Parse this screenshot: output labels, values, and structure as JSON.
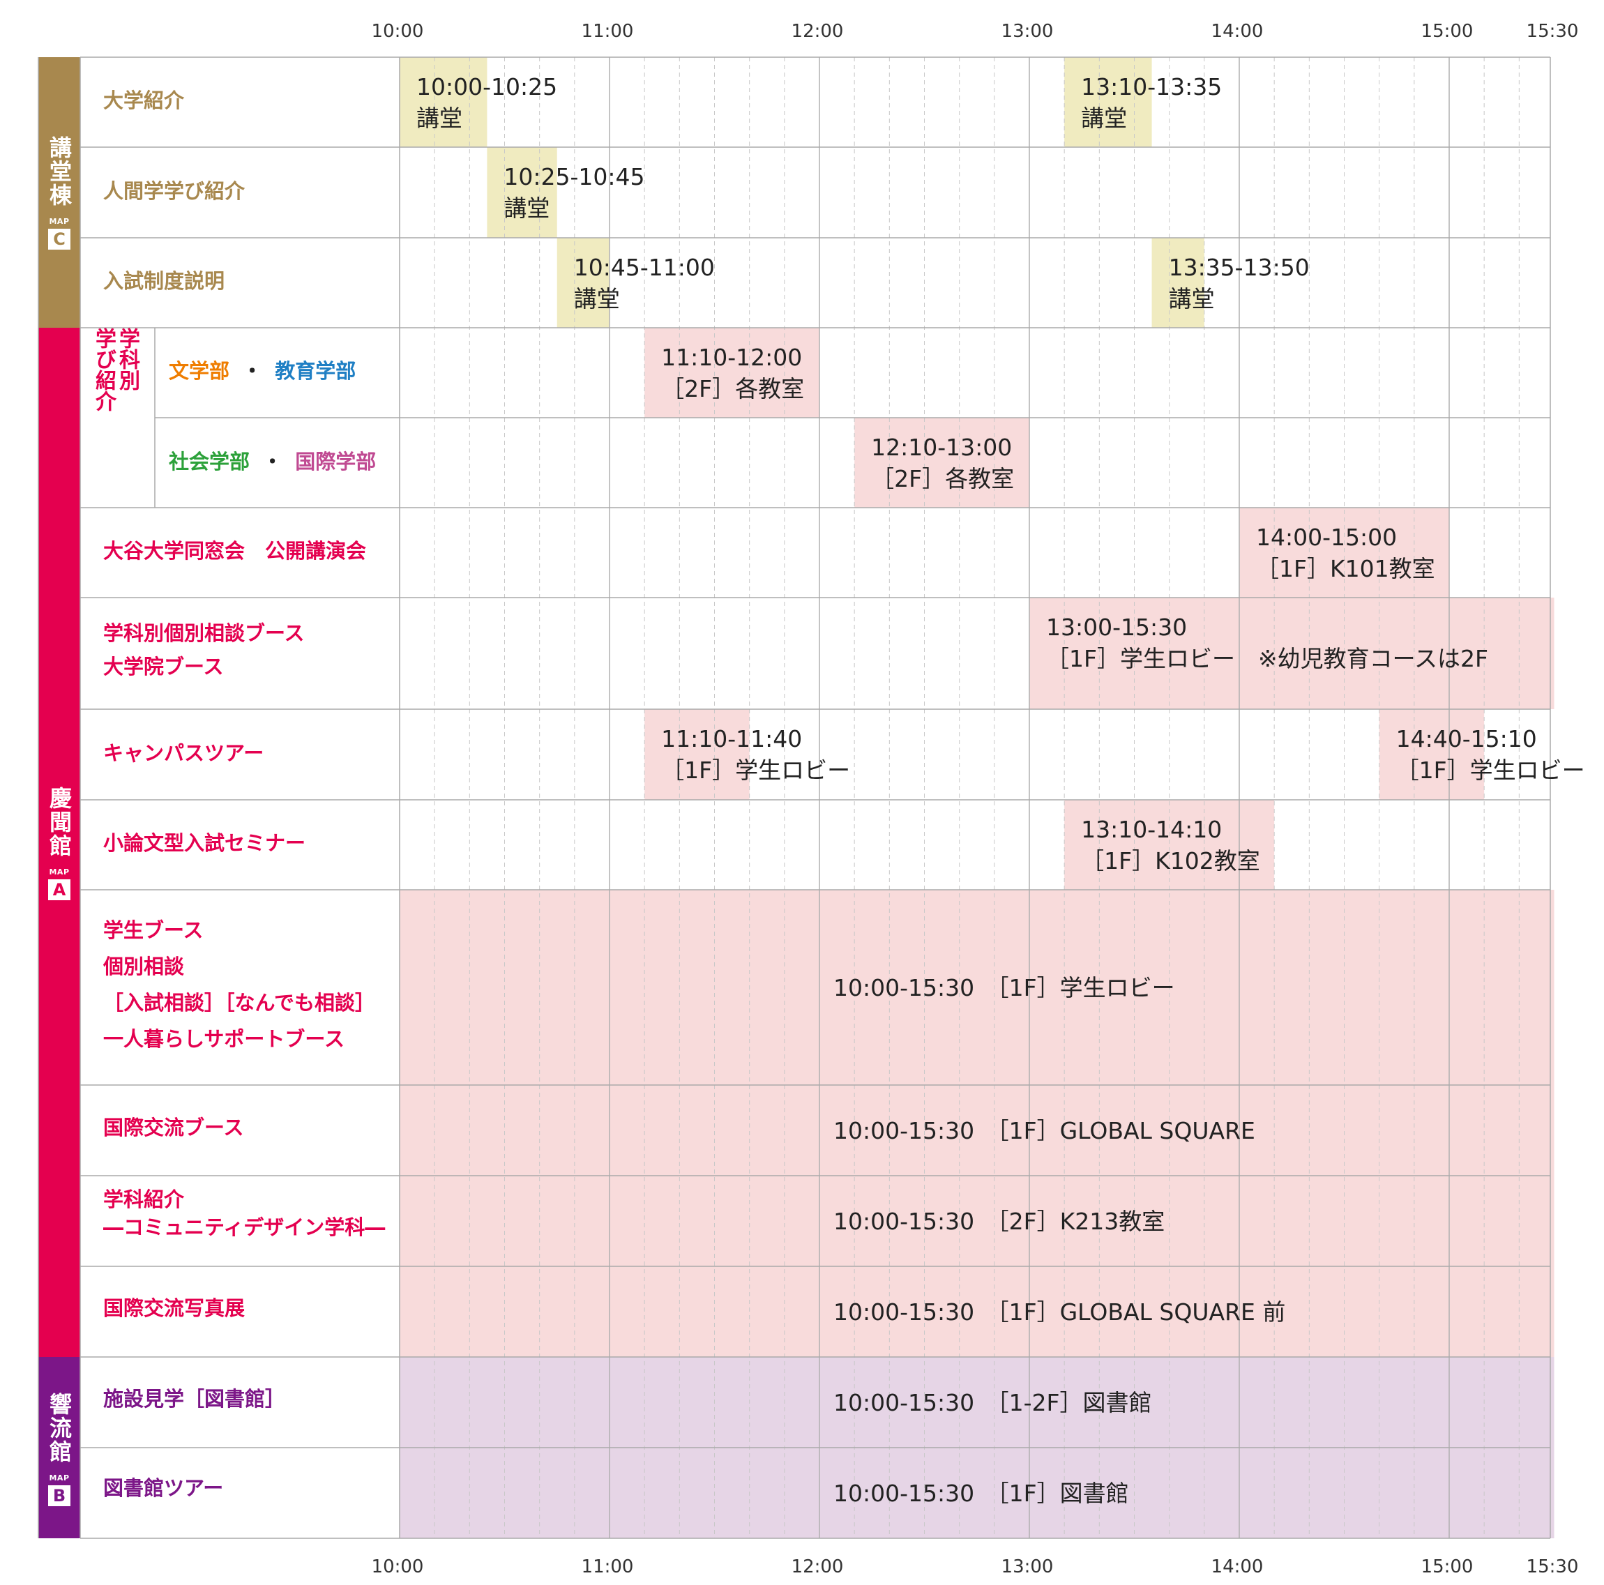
{
  "time_axis": {
    "ticks": [
      "10:00",
      "11:00",
      "12:00",
      "13:00",
      "14:00",
      "15:00",
      "15:30"
    ]
  },
  "colors": {
    "kodo": "#a8884e",
    "keimon": "#e4004f",
    "kyoryu": "#7c1688",
    "block_yellow": "#f0ebc0",
    "block_pink": "#f8dbdb",
    "block_purple": "#e6d5e6",
    "bungakubu": "#ef7d00",
    "kyoikugakubu": "#1f7fc4",
    "shakaigakubu": "#2ca13a",
    "kokusaigakubu": "#c04a92"
  },
  "buildings": [
    {
      "name": "講堂棟",
      "map_label": "MAP",
      "map_letter": "C"
    },
    {
      "name": "慶聞館",
      "map_label": "MAP",
      "map_letter": "A"
    },
    {
      "name": "響流館",
      "map_label": "MAP",
      "map_letter": "B"
    }
  ],
  "rows": [
    {
      "label": [
        "大学紹介"
      ]
    },
    {
      "label": [
        "人間学学び紹介"
      ]
    },
    {
      "label": [
        "入試制度説明"
      ]
    },
    {
      "label": [
        "・"
      ],
      "parts": [
        "文学部",
        "教育学部"
      ]
    },
    {
      "label": [
        "・"
      ],
      "parts": [
        "社会学部",
        "国際学部"
      ]
    },
    {
      "label": [
        "大谷大学同窓会　公開講演会"
      ]
    },
    {
      "label": [
        "学科別個別相談ブース",
        "大学院ブース"
      ]
    },
    {
      "label": [
        "キャンパスツアー"
      ]
    },
    {
      "label": [
        "小論文型入試セミナー"
      ]
    },
    {
      "label": [
        "学生ブース",
        "個別相談",
        "［入試相談］［なんでも相談］",
        "一人暮らしサポートブース"
      ]
    },
    {
      "label": [
        "国際交流ブース"
      ]
    },
    {
      "label": [
        "学科紹介",
        "―コミュニティデザイン学科―"
      ]
    },
    {
      "label": [
        "国際交流写真展"
      ]
    },
    {
      "label": [
        "施設見学［図書館］"
      ]
    },
    {
      "label": [
        "図書館ツアー"
      ]
    }
  ],
  "sub_group_label": [
    "学科別",
    "学び紹介"
  ],
  "events": [
    {
      "row": 0,
      "start": "10:00",
      "end": "10:25",
      "time": "10:00-10:25",
      "place": "講堂",
      "color": "#f0ebc0"
    },
    {
      "row": 0,
      "start": "13:10",
      "end": "13:35",
      "time": "13:10-13:35",
      "place": "講堂",
      "color": "#f0ebc0"
    },
    {
      "row": 1,
      "start": "10:25",
      "end": "10:45",
      "time": "10:25-10:45",
      "place": "講堂",
      "color": "#f0ebc0"
    },
    {
      "row": 2,
      "start": "10:45",
      "end": "11:00",
      "time": "10:45-11:00",
      "place": "講堂",
      "color": "#f0ebc0"
    },
    {
      "row": 2,
      "start": "13:35",
      "end": "13:50",
      "time": "13:35-13:50",
      "place": "講堂",
      "color": "#f0ebc0"
    },
    {
      "row": 3,
      "start": "11:10",
      "end": "12:00",
      "time": "11:10-12:00",
      "place": "［2F］各教室",
      "color": "#f8dbdb"
    },
    {
      "row": 4,
      "start": "12:10",
      "end": "13:00",
      "time": "12:10-13:00",
      "place": "［2F］各教室",
      "color": "#f8dbdb"
    },
    {
      "row": 5,
      "start": "14:00",
      "end": "15:00",
      "time": "14:00-15:00",
      "place": "［1F］K101教室",
      "color": "#f8dbdb"
    },
    {
      "row": 6,
      "start": "13:00",
      "end": "15:30",
      "time": "13:00-15:30",
      "place": "［1F］学生ロビー　※幼児教育コースは2F",
      "color": "#f8dbdb"
    },
    {
      "row": 7,
      "start": "11:10",
      "end": "11:40",
      "time": "11:10-11:40",
      "place": "［1F］学生ロビー",
      "color": "#f8dbdb"
    },
    {
      "row": 7,
      "start": "14:40",
      "end": "15:10",
      "time": "14:40-15:10",
      "place": "［1F］学生ロビー",
      "color": "#f8dbdb"
    },
    {
      "row": 8,
      "start": "13:10",
      "end": "14:10",
      "time": "13:10-14:10",
      "place": "［1F］K102教室",
      "color": "#f8dbdb"
    },
    {
      "row": 9,
      "start": "10:00",
      "end": "15:30",
      "time": "10:00-15:30",
      "place": "［1F］学生ロビー",
      "color": "#f8dbdb",
      "single_line": true
    },
    {
      "row": 10,
      "start": "10:00",
      "end": "15:30",
      "time": "10:00-15:30",
      "place": "［1F］GLOBAL SQUARE",
      "color": "#f8dbdb",
      "single_line": true
    },
    {
      "row": 11,
      "start": "10:00",
      "end": "15:30",
      "time": "10:00-15:30",
      "place": "［2F］K213教室",
      "color": "#f8dbdb",
      "single_line": true
    },
    {
      "row": 12,
      "start": "10:00",
      "end": "15:30",
      "time": "10:00-15:30",
      "place": "［1F］GLOBAL SQUARE 前",
      "color": "#f8dbdb",
      "single_line": true
    },
    {
      "row": 13,
      "start": "10:00",
      "end": "15:30",
      "time": "10:00-15:30",
      "place": "［1-2F］図書館",
      "color": "#e6d5e6",
      "single_line": true
    },
    {
      "row": 14,
      "start": "10:00",
      "end": "15:30",
      "time": "10:00-15:30",
      "place": "［1F］図書館",
      "color": "#e6d5e6",
      "single_line": true
    }
  ]
}
